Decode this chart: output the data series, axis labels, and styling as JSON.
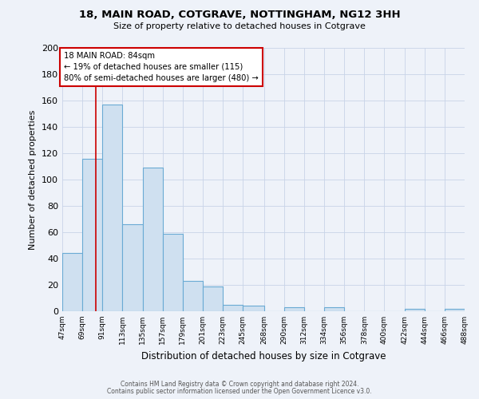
{
  "title": "18, MAIN ROAD, COTGRAVE, NOTTINGHAM, NG12 3HH",
  "subtitle": "Size of property relative to detached houses in Cotgrave",
  "xlabel": "Distribution of detached houses by size in Cotgrave",
  "ylabel": "Number of detached properties",
  "bar_color": "#cfe0f0",
  "bar_edge_color": "#6aaad4",
  "red_line_x": 84,
  "annotation_line1": "18 MAIN ROAD: 84sqm",
  "annotation_line2": "← 19% of detached houses are smaller (115)",
  "annotation_line3": "80% of semi-detached houses are larger (480) →",
  "annotation_box_color": "white",
  "annotation_box_edge_color": "#cc0000",
  "bin_edges": [
    47,
    69,
    91,
    113,
    135,
    157,
    179,
    201,
    223,
    245,
    268,
    290,
    312,
    334,
    356,
    378,
    400,
    422,
    444,
    466,
    488
  ],
  "bar_heights": [
    44,
    116,
    157,
    66,
    109,
    59,
    23,
    19,
    5,
    4,
    0,
    3,
    0,
    3,
    0,
    0,
    0,
    2,
    0,
    2
  ],
  "ylim": [
    0,
    200
  ],
  "yticks": [
    0,
    20,
    40,
    60,
    80,
    100,
    120,
    140,
    160,
    180,
    200
  ],
  "footer1": "Contains HM Land Registry data © Crown copyright and database right 2024.",
  "footer2": "Contains public sector information licensed under the Open Government Licence v3.0.",
  "background_color": "#eef2f9",
  "grid_color": "#c8d4e8"
}
